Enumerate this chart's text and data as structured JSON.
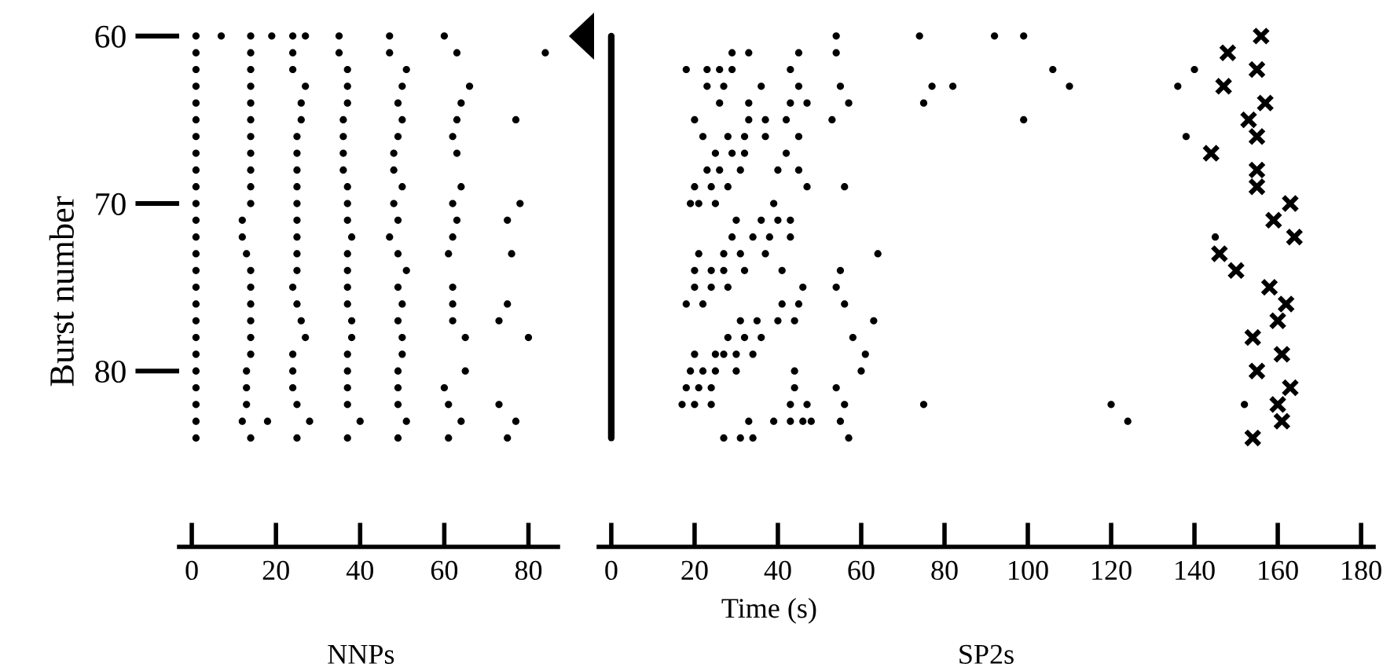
{
  "chart_data": [
    {
      "type": "scatter",
      "title": "NNPs",
      "ylabel": "Burst number",
      "xlim": [
        -3,
        87
      ],
      "xticks": [
        0,
        20,
        40,
        60,
        80
      ],
      "ylim": [
        90.5,
        60
      ],
      "yticks": [
        60,
        70,
        80
      ],
      "series": [
        {
          "marker": "circle",
          "color": "#000000",
          "x": [
            1,
            7,
            14,
            19,
            24,
            27,
            35,
            47,
            60,
            1,
            14,
            24,
            35,
            47,
            63,
            84,
            1,
            14,
            24,
            37,
            51,
            1,
            14,
            27,
            37,
            50,
            66,
            1,
            14,
            26,
            37,
            49,
            64,
            1,
            14,
            26,
            36,
            50,
            63,
            77,
            1,
            14,
            25,
            36,
            49,
            62,
            1,
            14,
            25,
            36,
            48,
            63,
            1,
            14,
            25,
            36,
            48,
            1,
            14,
            25,
            37,
            50,
            64,
            1,
            14,
            25,
            37,
            48,
            62,
            78,
            1,
            12,
            25,
            37,
            49,
            63,
            75,
            1,
            12,
            25,
            38,
            47,
            62,
            1,
            13,
            25,
            37,
            49,
            61,
            76,
            1,
            14,
            25,
            37,
            51,
            1,
            14,
            24,
            37,
            49,
            62,
            1,
            14,
            25,
            37,
            50,
            62,
            75,
            1,
            14,
            26,
            38,
            49,
            62,
            73,
            1,
            14,
            27,
            38,
            50,
            65,
            80,
            1,
            14,
            24,
            37,
            50,
            1,
            13,
            24,
            37,
            49,
            65,
            1,
            13,
            24,
            37,
            49,
            60,
            1,
            13,
            25,
            37,
            49,
            61,
            73,
            1,
            12,
            18,
            28,
            40,
            51,
            64,
            77,
            1,
            14,
            25,
            37,
            49,
            61,
            75
          ],
          "values": [
            60,
            60,
            60,
            60,
            60,
            60,
            60,
            60,
            60,
            61,
            61,
            61,
            61,
            61,
            61,
            61,
            62,
            62,
            62,
            62,
            62,
            63,
            63,
            63,
            63,
            63,
            63,
            64,
            64,
            64,
            64,
            64,
            64,
            65,
            65,
            65,
            65,
            65,
            65,
            65,
            66,
            66,
            66,
            66,
            66,
            66,
            67,
            67,
            67,
            67,
            67,
            67,
            68,
            68,
            68,
            68,
            68,
            69,
            69,
            69,
            69,
            69,
            69,
            70,
            70,
            70,
            70,
            70,
            70,
            70,
            71,
            71,
            71,
            71,
            71,
            71,
            71,
            72,
            72,
            72,
            72,
            72,
            72,
            73,
            73,
            73,
            73,
            73,
            73,
            73,
            74,
            74,
            74,
            74,
            74,
            75,
            75,
            75,
            75,
            75,
            75,
            76,
            76,
            76,
            76,
            76,
            76,
            76,
            77,
            77,
            77,
            77,
            77,
            77,
            77,
            78,
            78,
            78,
            78,
            78,
            78,
            78,
            79,
            79,
            79,
            79,
            79,
            80,
            80,
            80,
            80,
            80,
            80,
            81,
            81,
            81,
            81,
            81,
            81,
            82,
            82,
            82,
            82,
            82,
            82,
            82,
            83,
            83,
            83,
            83,
            83,
            83,
            83,
            83,
            84,
            84,
            84,
            84,
            84,
            84,
            84
          ]
        }
      ]
    },
    {
      "type": "scatter",
      "title": "SP2s",
      "xlabel": "Time (s)",
      "xlim": [
        -3,
        183
      ],
      "xticks": [
        0,
        20,
        40,
        60,
        80,
        100,
        120,
        140,
        160,
        180
      ],
      "ylim": [
        90.5,
        60
      ],
      "yticks": [
        60,
        70,
        80
      ],
      "tick_labels": "x",
      "series": [
        {
          "type": "line",
          "color": "#000000",
          "x": [
            0,
            0,
            0
          ],
          "values": [
            60,
            72,
            84
          ]
        },
        {
          "marker": "circle",
          "color": "#000000",
          "x": [
            54,
            74,
            92,
            99,
            29,
            33,
            45,
            54,
            18,
            23,
            26,
            29,
            43,
            106,
            140,
            23,
            27,
            36,
            45,
            55,
            77,
            82,
            110,
            136,
            26,
            33,
            43,
            47,
            57,
            75,
            20,
            33,
            37,
            42,
            53,
            99,
            22,
            28,
            32,
            37,
            45,
            138,
            25,
            29,
            32,
            42,
            23,
            26,
            31,
            40,
            45,
            20,
            24,
            28,
            47,
            56,
            19,
            21,
            25,
            39,
            30,
            36,
            40,
            43,
            29,
            34,
            38,
            43,
            145,
            21,
            27,
            31,
            37,
            64,
            20,
            24,
            27,
            32,
            41,
            55,
            20,
            24,
            28,
            46,
            54,
            18,
            22,
            41,
            45,
            56,
            31,
            35,
            40,
            44,
            63,
            28,
            32,
            36,
            58,
            20,
            25,
            27,
            30,
            34,
            61,
            19,
            22,
            25,
            30,
            44,
            60,
            18,
            21,
            24,
            44,
            54,
            17,
            20,
            24,
            43,
            47,
            56,
            75,
            120,
            152,
            33,
            39,
            43,
            46,
            48,
            55,
            124,
            27,
            31,
            34,
            57
          ],
          "values": [
            60,
            60,
            60,
            60,
            61,
            61,
            61,
            61,
            62,
            62,
            62,
            62,
            62,
            62,
            62,
            63,
            63,
            63,
            63,
            63,
            63,
            63,
            63,
            63,
            64,
            64,
            64,
            64,
            64,
            64,
            65,
            65,
            65,
            65,
            65,
            65,
            66,
            66,
            66,
            66,
            66,
            66,
            67,
            67,
            67,
            67,
            68,
            68,
            68,
            68,
            68,
            69,
            69,
            69,
            69,
            69,
            70,
            70,
            70,
            70,
            71,
            71,
            71,
            71,
            72,
            72,
            72,
            72,
            72,
            73,
            73,
            73,
            73,
            73,
            74,
            74,
            74,
            74,
            74,
            74,
            75,
            75,
            75,
            75,
            75,
            76,
            76,
            76,
            76,
            76,
            77,
            77,
            77,
            77,
            77,
            78,
            78,
            78,
            78,
            79,
            79,
            79,
            79,
            79,
            79,
            80,
            80,
            80,
            80,
            80,
            80,
            81,
            81,
            81,
            81,
            81,
            82,
            82,
            82,
            82,
            82,
            82,
            82,
            82,
            82,
            83,
            83,
            83,
            83,
            83,
            83,
            83,
            84,
            84,
            84,
            84
          ]
        },
        {
          "marker": "cross",
          "color": "#000000",
          "x": [
            156,
            148,
            155,
            147,
            157,
            153,
            155,
            144,
            155,
            155,
            163,
            159,
            164,
            146,
            150,
            158,
            162,
            160,
            154,
            161,
            155,
            163,
            160,
            161,
            154
          ],
          "values": [
            60,
            61,
            62,
            63,
            64,
            65,
            66,
            67,
            68,
            69,
            70,
            71,
            72,
            73,
            74,
            75,
            76,
            77,
            78,
            79,
            80,
            81,
            82,
            83,
            84
          ]
        }
      ]
    }
  ]
}
